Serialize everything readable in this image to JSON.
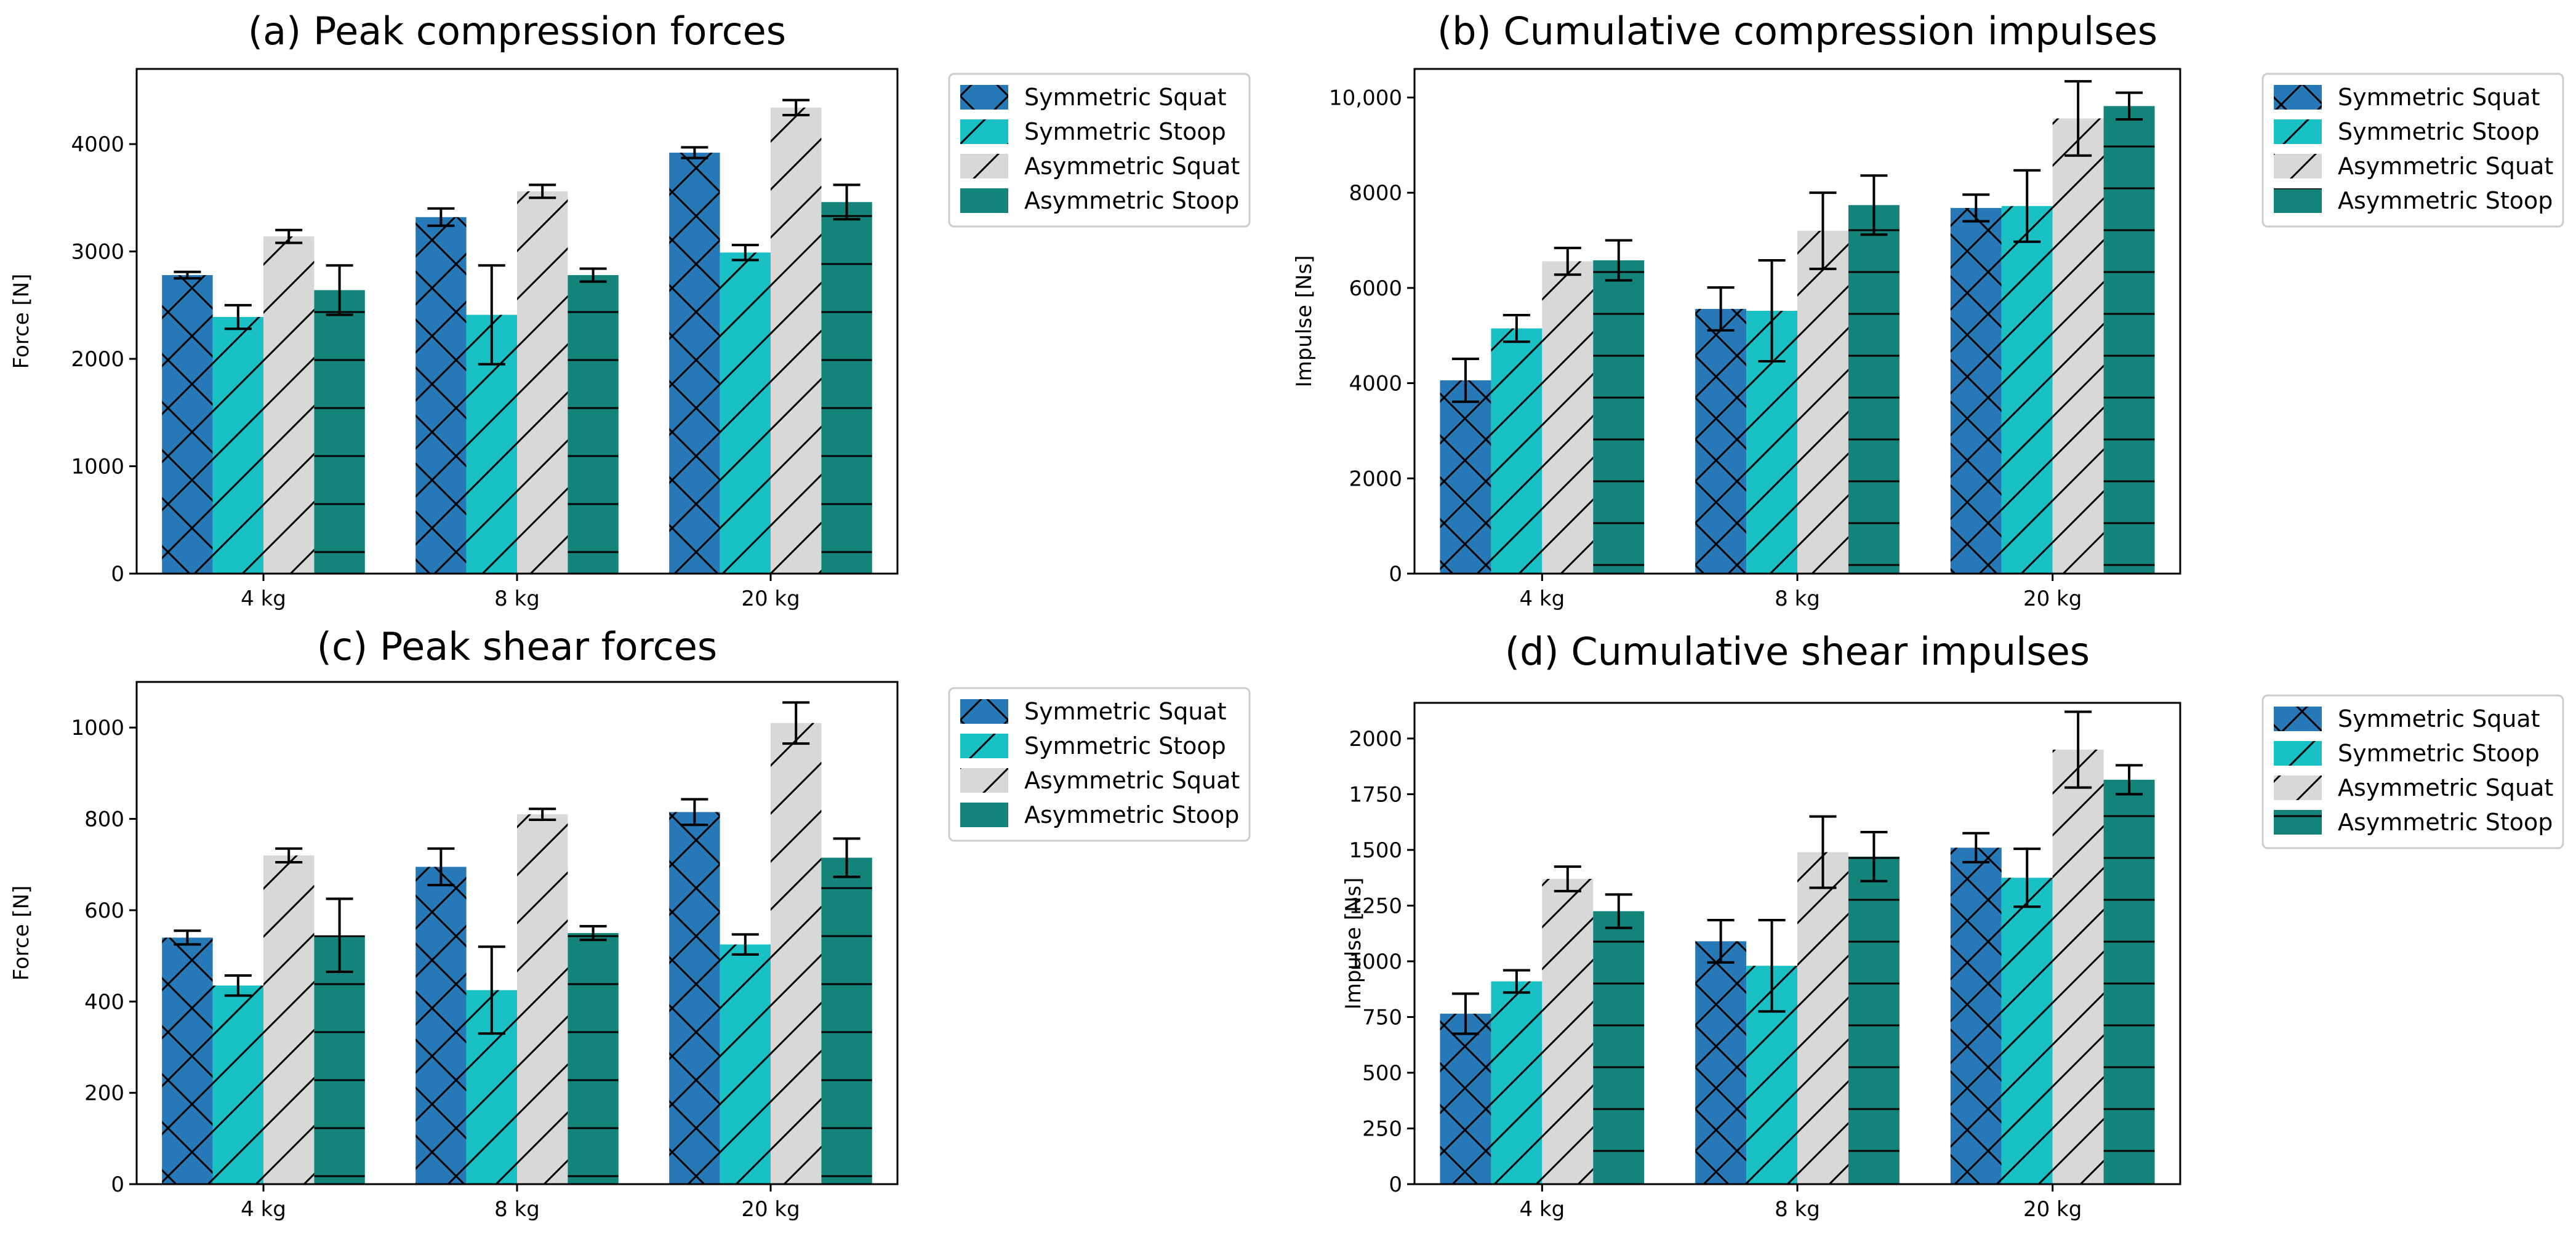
{
  "figure": {
    "series_names": [
      "Symmetric Squat",
      "Symmetric Stoop",
      "Asymmetric Squat",
      "Asymmetric Stoop"
    ],
    "series_colors": [
      "#2678b7",
      "#19c0c4",
      "#d8d8d8",
      "#14837a"
    ],
    "series_hatches": [
      "cross",
      "diagonal",
      "diagonal",
      "horizontal"
    ]
  },
  "chart_data": [
    {
      "type": "bar",
      "title": "(a) Peak compression forces",
      "xlabel": "",
      "ylabel": "Force [N]",
      "categories": [
        "4 kg",
        "8 kg",
        "20 kg"
      ],
      "ylim": [
        0,
        4700
      ],
      "yticks": [
        0,
        1000,
        2000,
        3000,
        4000
      ],
      "ytick_labels": [
        "0",
        "1000",
        "2000",
        "3000",
        "4000"
      ],
      "legend_position": "outside-right",
      "series": [
        {
          "name": "Symmetric Squat",
          "values": [
            2780,
            3320,
            3920
          ],
          "errors": [
            30,
            80,
            50
          ]
        },
        {
          "name": "Symmetric Stoop",
          "values": [
            2390,
            2410,
            2990
          ],
          "errors": [
            110,
            460,
            70
          ]
        },
        {
          "name": "Asymmetric Squat",
          "values": [
            3140,
            3560,
            4340
          ],
          "errors": [
            60,
            60,
            70
          ]
        },
        {
          "name": "Asymmetric Stoop",
          "values": [
            2640,
            2780,
            3460
          ],
          "errors": [
            230,
            60,
            160
          ]
        }
      ]
    },
    {
      "type": "bar",
      "title": "(b) Cumulative compression impulses",
      "xlabel": "",
      "ylabel": "Impulse [Ns]",
      "categories": [
        "4 kg",
        "8 kg",
        "20 kg"
      ],
      "ylim": [
        0,
        10600
      ],
      "yticks": [
        0,
        2000,
        4000,
        6000,
        8000,
        10000
      ],
      "ytick_labels": [
        "0",
        "2000",
        "4000",
        "6000",
        "8000",
        "10,000"
      ],
      "legend_position": "outside-right",
      "series": [
        {
          "name": "Symmetric Squat",
          "values": [
            4060,
            5560,
            7680
          ],
          "errors": [
            450,
            450,
            280
          ]
        },
        {
          "name": "Symmetric Stoop",
          "values": [
            5150,
            5520,
            7720
          ],
          "errors": [
            280,
            1060,
            750
          ]
        },
        {
          "name": "Asymmetric Squat",
          "values": [
            6560,
            7200,
            9560
          ],
          "errors": [
            280,
            800,
            780
          ]
        },
        {
          "name": "Asymmetric Stoop",
          "values": [
            6580,
            7740,
            9820
          ],
          "errors": [
            420,
            620,
            280
          ]
        }
      ]
    },
    {
      "type": "bar",
      "title": "(c) Peak shear forces",
      "xlabel": "",
      "ylabel": "Force [N]",
      "categories": [
        "4 kg",
        "8 kg",
        "20 kg"
      ],
      "ylim": [
        0,
        1100
      ],
      "yticks": [
        0,
        200,
        400,
        600,
        800,
        1000
      ],
      "ytick_labels": [
        "0",
        "200",
        "400",
        "600",
        "800",
        "1000"
      ],
      "legend_position": "outside-right",
      "series": [
        {
          "name": "Symmetric Squat",
          "values": [
            540,
            695,
            815
          ],
          "errors": [
            15,
            40,
            28
          ]
        },
        {
          "name": "Symmetric Stoop",
          "values": [
            435,
            425,
            525
          ],
          "errors": [
            22,
            95,
            22
          ]
        },
        {
          "name": "Asymmetric Squat",
          "values": [
            720,
            810,
            1010
          ],
          "errors": [
            15,
            12,
            45
          ]
        },
        {
          "name": "Asymmetric Stoop",
          "values": [
            545,
            550,
            715
          ],
          "errors": [
            80,
            15,
            42
          ]
        }
      ]
    },
    {
      "type": "bar",
      "title": "(d) Cumulative shear impulses",
      "xlabel": "",
      "ylabel": "Impulse [Ns]",
      "categories": [
        "4 kg",
        "8 kg",
        "20 kg"
      ],
      "ylim": [
        0,
        2160
      ],
      "yticks": [
        0,
        250,
        500,
        750,
        1000,
        1250,
        1500,
        1750,
        2000
      ],
      "ytick_labels": [
        "0",
        "250",
        "500",
        "750",
        "1000",
        "1250",
        "1500",
        "1750",
        "2000"
      ],
      "legend_position": "outside-right",
      "series": [
        {
          "name": "Symmetric Squat",
          "values": [
            765,
            1090,
            1510
          ],
          "errors": [
            90,
            95,
            65
          ]
        },
        {
          "name": "Symmetric Stoop",
          "values": [
            910,
            980,
            1375
          ],
          "errors": [
            50,
            205,
            130
          ]
        },
        {
          "name": "Asymmetric Squat",
          "values": [
            1370,
            1490,
            1950
          ],
          "errors": [
            55,
            160,
            170
          ]
        },
        {
          "name": "Asymmetric Stoop",
          "values": [
            1225,
            1470,
            1815
          ],
          "errors": [
            75,
            110,
            65
          ]
        }
      ]
    }
  ]
}
